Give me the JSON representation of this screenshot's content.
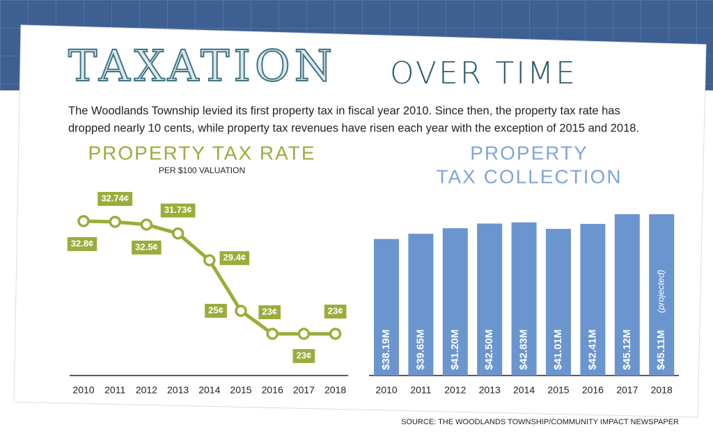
{
  "title": "TAXATION",
  "subtitle": "OVER TIME",
  "description": [
    "The Woodlands Township levied its first property tax in fiscal year 2010. Since then, the property tax rate has",
    "dropped nearly 10 cents, while property tax revenues have risen each year with the exception of 2015 and 2018."
  ],
  "source": "SOURCE: THE WOODLANDS TOWNSHIP/COMMUNITY IMPACT NEWSPAPER",
  "chart_data": [
    {
      "type": "line",
      "title": "PROPERTY TAX RATE",
      "subtitle": "PER $100 VALUATION",
      "categories": [
        "2010",
        "2011",
        "2012",
        "2013",
        "2014",
        "2015",
        "2016",
        "2017",
        "2018"
      ],
      "values": [
        32.8,
        32.74,
        32.5,
        31.73,
        29.4,
        25,
        23,
        23,
        23
      ],
      "value_labels": [
        "32.8¢",
        "32.74¢",
        "32.5¢",
        "31.73¢",
        "29.4¢",
        "25¢",
        "23¢",
        "23¢",
        "23¢"
      ],
      "color": "#9aad3a"
    },
    {
      "type": "bar",
      "title": [
        "PROPERTY",
        "TAX COLLECTION"
      ],
      "categories": [
        "2010",
        "2011",
        "2012",
        "2013",
        "2014",
        "2015",
        "2016",
        "2017",
        "2018"
      ],
      "values": [
        38.19,
        39.65,
        41.2,
        42.5,
        42.83,
        41.01,
        42.41,
        45.12,
        45.11
      ],
      "value_labels": [
        "$38.19M",
        "$39.65M",
        "$41.20M",
        "$42.50M",
        "$42.83M",
        "$41.01M",
        "$42.41M",
        "$45.12M",
        "$45.11M"
      ],
      "annotation": "(projected)",
      "color": "#6a95cf"
    }
  ]
}
